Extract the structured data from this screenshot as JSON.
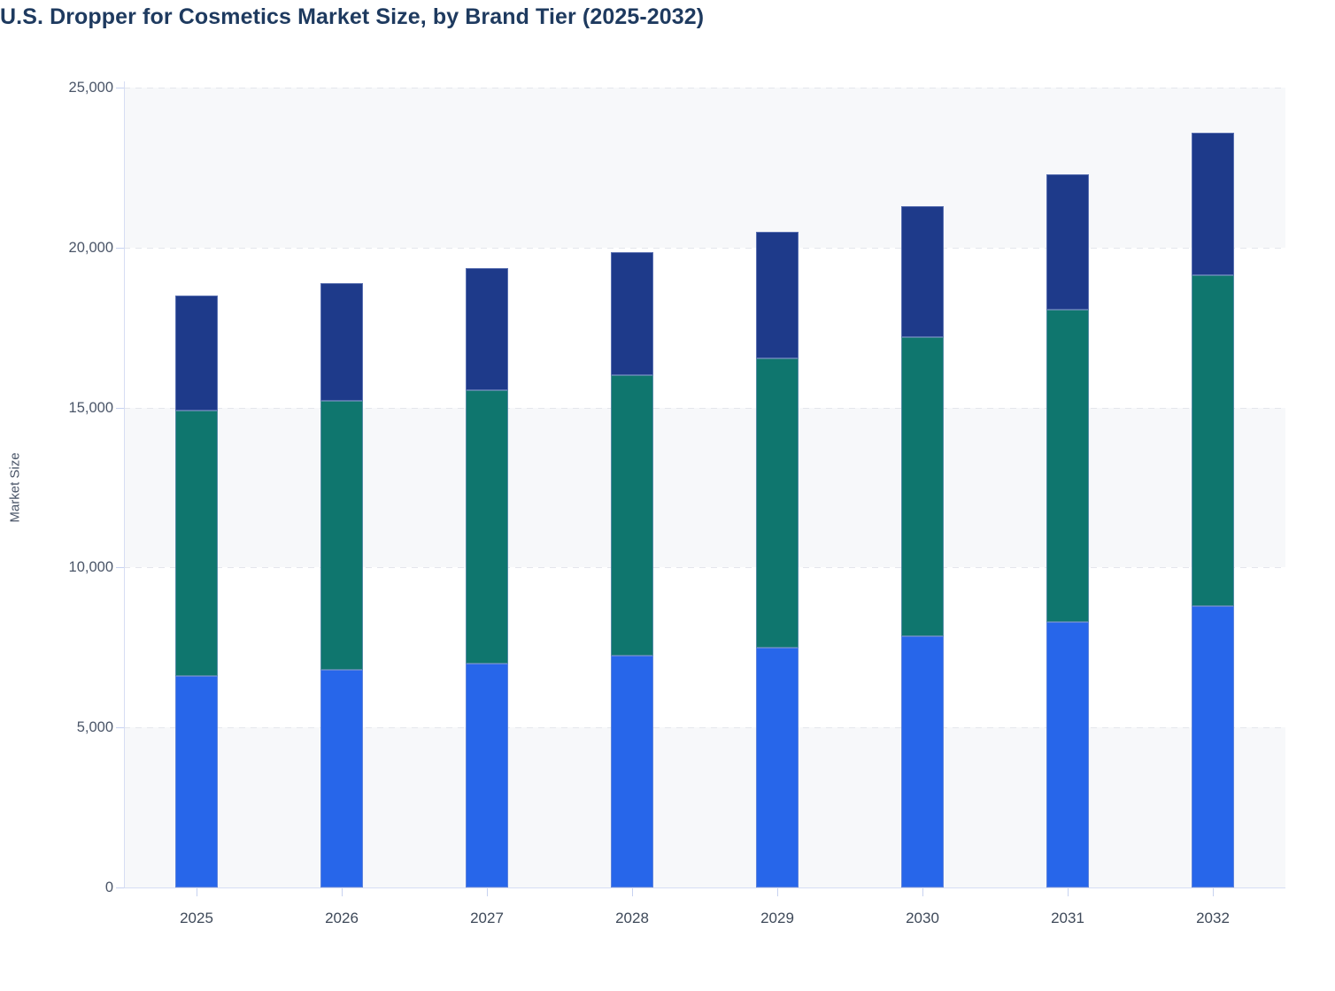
{
  "title": "U.S. Dropper for Cosmetics Market Size, by Brand Tier (2025-2032)",
  "y_axis": {
    "label": "Market Size",
    "ticks": [
      "25,000",
      "20,000",
      "15,000",
      "10,000",
      "5,000",
      "0"
    ]
  },
  "x_axis": {
    "ticks": [
      "2025",
      "2026",
      "2027",
      "2028",
      "2029",
      "2030",
      "2031",
      "2032"
    ]
  },
  "chart_data": {
    "type": "bar",
    "stacked": true,
    "title": "U.S. Dropper for Cosmetics Market Size, by Brand Tier (2025-2032)",
    "xlabel": "",
    "ylabel": "Market Size",
    "ylim": [
      0,
      25000
    ],
    "yticks": [
      0,
      5000,
      10000,
      15000,
      20000,
      25000
    ],
    "grid": "horizontal-dashed",
    "legend_position": "none",
    "background_bands": "alternating-gray-from-top",
    "categories": [
      "2025",
      "2026",
      "2027",
      "2028",
      "2029",
      "2030",
      "2031",
      "2032"
    ],
    "series": [
      {
        "name": "Blue (bottom segment)",
        "color": "#2766ea",
        "values": [
          6600,
          6800,
          7000,
          7250,
          7500,
          7850,
          8300,
          8800
        ]
      },
      {
        "name": "Teal (middle segment)",
        "color": "#0f766e",
        "values": [
          8300,
          8400,
          8550,
          8750,
          9050,
          9350,
          9750,
          10350
        ]
      },
      {
        "name": "Navy (top segment)",
        "color": "#1e3a8a",
        "values": [
          3600,
          3700,
          3800,
          3850,
          3950,
          4100,
          4250,
          4450
        ]
      }
    ],
    "stack_totals": [
      18500,
      18900,
      19350,
      19850,
      20500,
      21300,
      22300,
      23600
    ]
  },
  "colors": {
    "bar_blue": "#2766ea",
    "bar_teal": "#0f766e",
    "bar_navy": "#1e3a8a",
    "band": "#f7f8fa",
    "gridline": "#e4e6ec",
    "axis_line": "#d6ddf3",
    "tick": "#c7d2f0",
    "title_text": "#1e3a5f",
    "axis_text": "#4a5568",
    "xlabel_text": "#3e4959",
    "segment_stroke": "rgba(139,154,207,0.55)"
  }
}
